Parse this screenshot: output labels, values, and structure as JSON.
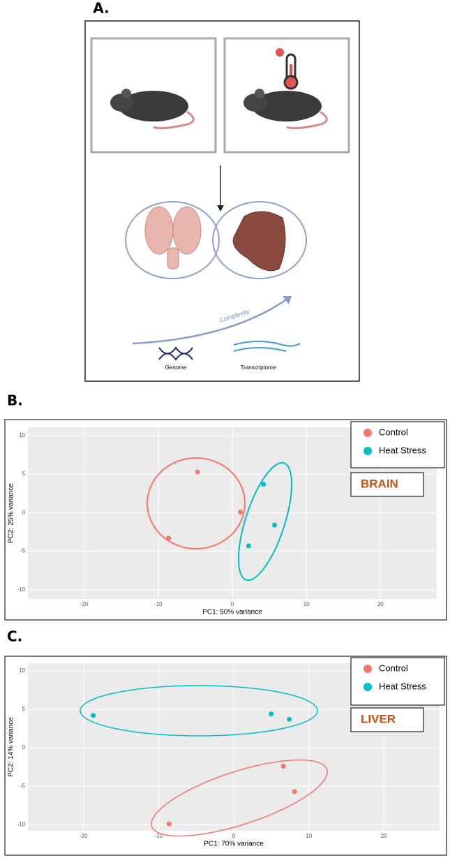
{
  "panel_a": {
    "label": "A.",
    "arrow_label": "Complexity",
    "left_label": "Genome",
    "right_label": "Transcriptome"
  },
  "chart_data": [
    {
      "type": "scatter",
      "panel_label": "B.",
      "annotation": "BRAIN",
      "xlabel": "PC1: 50% variance",
      "ylabel": "PC2: 25% variance",
      "xlim": [
        -27.6,
        27.6
      ],
      "ylim": [
        -11.2,
        11.1
      ],
      "xticks": [
        -20,
        -10,
        0,
        10,
        20
      ],
      "yticks": [
        -10,
        -5,
        0,
        5,
        10
      ],
      "grid": true,
      "legend": "upper right",
      "series": [
        {
          "name": "Control",
          "color": "#f8766d",
          "x": [
            -4.7,
            -8.6,
            1.1
          ],
          "values": [
            5.3,
            -3.3,
            0.1
          ]
        },
        {
          "name": "Heat Stress",
          "color": "#00bfc4",
          "x": [
            4.2,
            5.7,
            2.2
          ],
          "values": [
            3.7,
            -1.6,
            -4.3
          ]
        }
      ]
    },
    {
      "type": "scatter",
      "panel_label": "C.",
      "annotation": "LIVER",
      "xlabel": "PC1: 70% variance",
      "ylabel": "PC2: 14% variance",
      "xlim": [
        -27.4,
        27.4
      ],
      "ylim": [
        -10.8,
        11
      ],
      "xticks": [
        -20,
        -10,
        0,
        10,
        20
      ],
      "yticks": [
        -10,
        -5,
        0,
        5,
        10
      ],
      "grid": true,
      "legend": "upper right",
      "series": [
        {
          "name": "Control",
          "color": "#f8766d",
          "x": [
            6.6,
            8.1,
            -8.6
          ],
          "values": [
            -2.4,
            -5.7,
            -9.9
          ]
        },
        {
          "name": "Heat Stress",
          "color": "#00bfc4",
          "x": [
            -18.7,
            5.0,
            7.4
          ],
          "values": [
            4.2,
            4.4,
            3.7
          ]
        }
      ]
    }
  ]
}
